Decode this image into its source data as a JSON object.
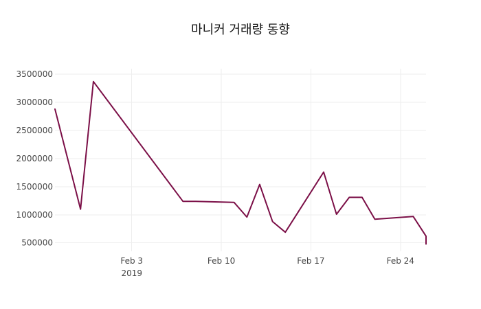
{
  "chart_data": {
    "type": "line",
    "title": "마니커 거래량 동향",
    "xlabel": "",
    "ylabel": "",
    "grid": true,
    "legend": "none",
    "colors": {
      "line": "#7b0f47",
      "grid": "#eeeeee",
      "text": "#444444"
    },
    "xlim": [
      "2019-01-28",
      "2019-02-26"
    ],
    "ylim": [
      350000,
      3600000
    ],
    "x_ticks": [
      {
        "value": "2019-02-03",
        "label": "Feb 3",
        "sublabel": "2019"
      },
      {
        "value": "2019-02-10",
        "label": "Feb 10",
        "sublabel": ""
      },
      {
        "value": "2019-02-17",
        "label": "Feb 17",
        "sublabel": ""
      },
      {
        "value": "2019-02-24",
        "label": "Feb 24",
        "sublabel": ""
      }
    ],
    "y_ticks": [
      {
        "value": 500000,
        "label": "500000"
      },
      {
        "value": 1000000,
        "label": "1000000"
      },
      {
        "value": 1500000,
        "label": "1500000"
      },
      {
        "value": 2000000,
        "label": "2000000"
      },
      {
        "value": 2500000,
        "label": "2500000"
      },
      {
        "value": 3000000,
        "label": "3000000"
      },
      {
        "value": 3500000,
        "label": "3500000"
      }
    ],
    "series": [
      {
        "x": [
          "2019-01-28",
          "2019-01-30",
          "2019-01-31",
          "2019-02-07",
          "2019-02-08",
          "2019-02-11",
          "2019-02-12",
          "2019-02-13",
          "2019-02-14",
          "2019-02-15",
          "2019-02-18",
          "2019-02-19",
          "2019-02-20",
          "2019-02-21",
          "2019-02-22",
          "2019-02-25",
          "2019-02-26",
          "2019-02-27"
        ],
        "values": [
          2880000,
          1100000,
          3370000,
          1240000,
          1240000,
          1220000,
          960000,
          1540000,
          880000,
          690000,
          1760000,
          1010000,
          1310000,
          1310000,
          920000,
          970000,
          620000,
          480000
        ]
      }
    ]
  }
}
